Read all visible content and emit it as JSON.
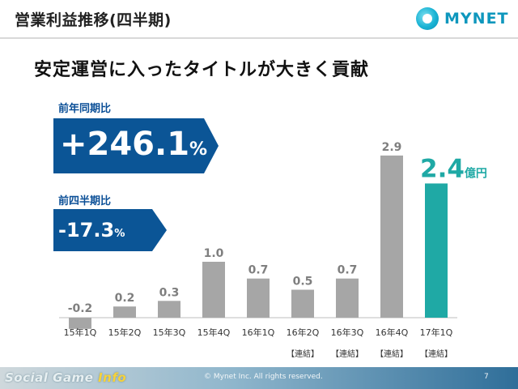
{
  "header": {
    "title": "営業利益推移(四半期)",
    "logo_text": "MYNET"
  },
  "headline": "安定運営に入ったタイトルが大きく貢献",
  "kpis": {
    "yoy": {
      "label": "前年同期比",
      "value": "+246.1",
      "unit": "%"
    },
    "qoq": {
      "label": "前四半期比",
      "value": "-17.3",
      "unit": "%"
    }
  },
  "chart_data": {
    "type": "bar",
    "categories": [
      "15年1Q",
      "15年2Q",
      "15年3Q",
      "15年4Q",
      "16年1Q",
      "16年2Q",
      "16年3Q",
      "16年4Q",
      "17年1Q"
    ],
    "values": [
      -0.2,
      0.2,
      0.3,
      1.0,
      0.7,
      0.5,
      0.7,
      2.9,
      2.4
    ],
    "value_labels": [
      "-0.2",
      "0.2",
      "0.3",
      "1.0",
      "0.7",
      "0.5",
      "0.7",
      "2.9",
      "2.4"
    ],
    "sub_labels": [
      "",
      "",
      "",
      "",
      "",
      "【連結】",
      "【連結】",
      "【連結】",
      "【連結】"
    ],
    "highlight_index": 8,
    "highlight_unit": "億円",
    "bar_color": "#a6a6a6",
    "highlight_color": "#1fa9a5",
    "highlight_label_color": "#1fa9a5",
    "ylim": [
      -0.2,
      2.9
    ],
    "grid": false,
    "title": "",
    "xlabel": "",
    "ylabel": ""
  },
  "footer": {
    "brand_a": "Social Game ",
    "brand_b": "Info",
    "copyright": "© Mynet Inc. All rights reserved.",
    "page": "7"
  }
}
